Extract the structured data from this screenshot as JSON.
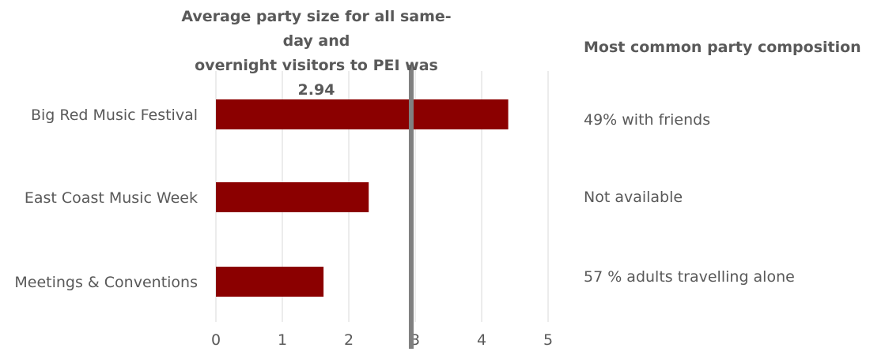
{
  "chart_data": {
    "type": "bar",
    "orientation": "horizontal",
    "title": "Average party size for all same-day and overnight visitors to PEI was 2.94",
    "title_lines": [
      "Average party size for all same-day and",
      "overnight visitors to PEI was 2.94"
    ],
    "categories": [
      "Big Red Music Festival",
      "East Coast Music Week",
      "Meetings & Conventions"
    ],
    "values": [
      4.4,
      2.3,
      1.62
    ],
    "xlim": [
      0,
      5
    ],
    "x_ticks": [
      "0",
      "1",
      "2",
      "3",
      "4",
      "5"
    ],
    "grid": true,
    "reference_line": 2.94,
    "colors": {
      "bar": "#8b0000",
      "reference": "#808080",
      "grid": "#d9d9d9",
      "text": "#595959"
    }
  },
  "composition": {
    "header": "Most common party composition",
    "items": [
      "49% with friends",
      "Not available",
      "57 % adults travelling alone"
    ]
  }
}
